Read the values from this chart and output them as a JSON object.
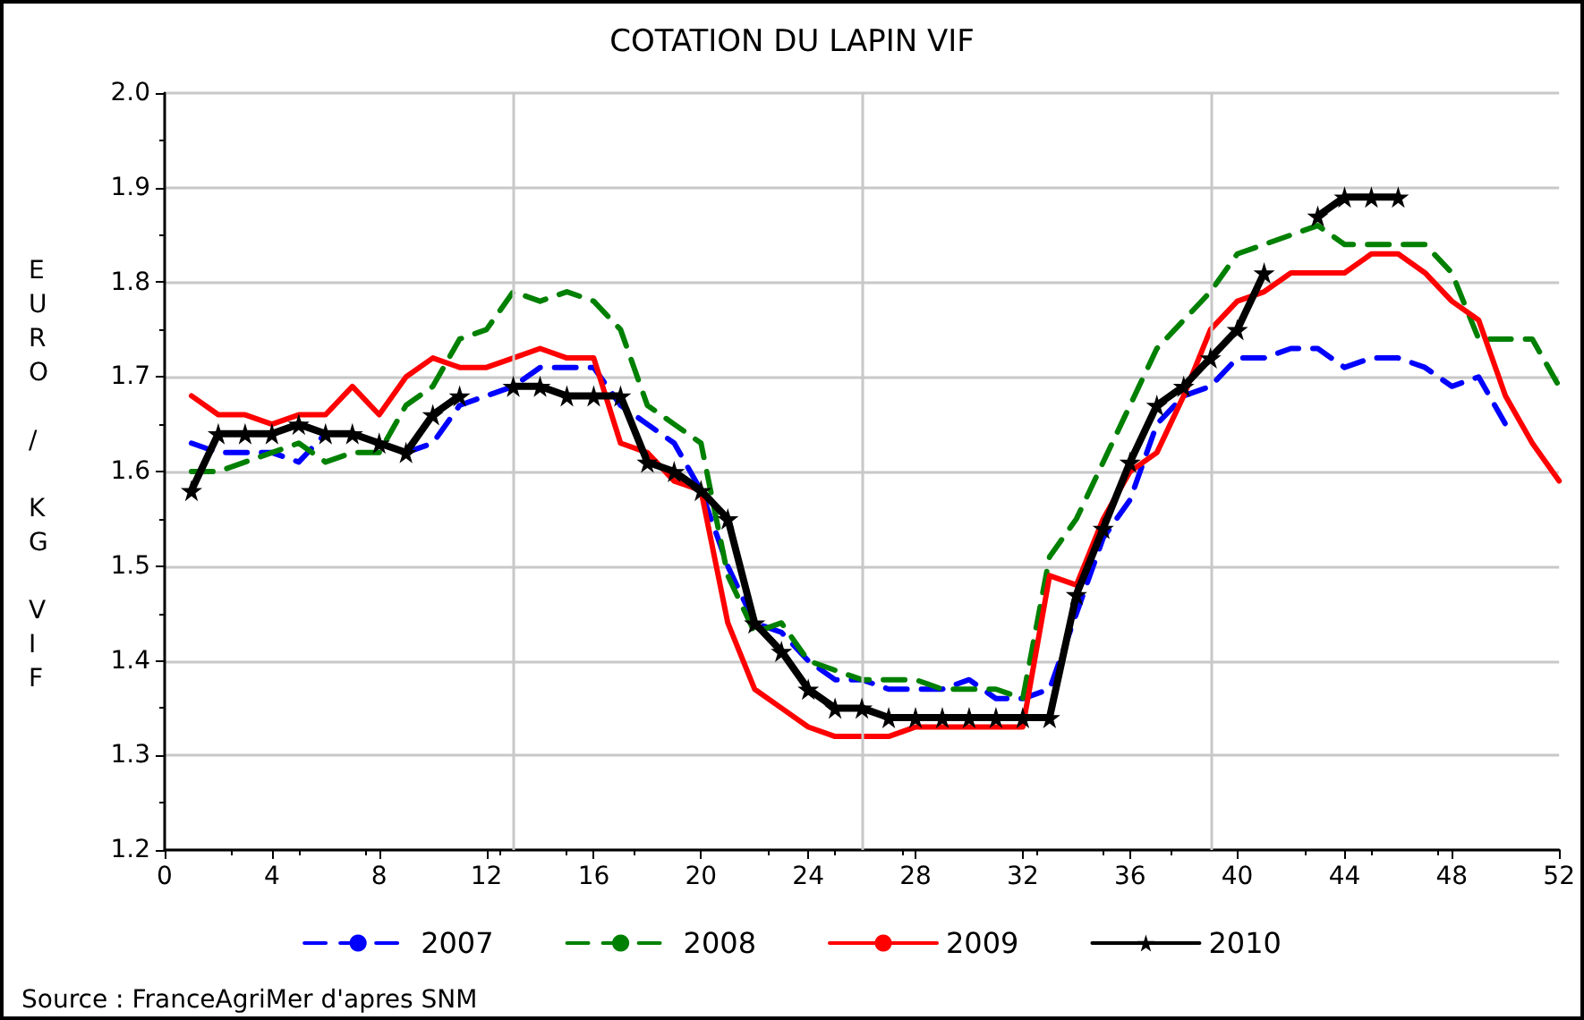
{
  "chart_data": {
    "type": "line",
    "title": "COTATION DU LAPIN VIF",
    "ylabel": "EURO / KG VIF",
    "annotations": [
      "Source : FranceAgriMer d'apres SNM"
    ],
    "x": [
      1,
      2,
      3,
      4,
      5,
      6,
      7,
      8,
      9,
      10,
      11,
      12,
      13,
      14,
      15,
      16,
      17,
      18,
      19,
      20,
      21,
      22,
      23,
      24,
      25,
      26,
      27,
      28,
      29,
      30,
      31,
      32,
      33,
      34,
      35,
      36,
      37,
      38,
      39,
      40,
      41,
      42,
      43,
      44,
      45,
      46,
      47,
      48,
      49,
      50,
      51,
      52
    ],
    "xlim": [
      0,
      52
    ],
    "xticks": [
      0,
      4,
      8,
      12,
      16,
      20,
      24,
      28,
      32,
      36,
      40,
      44,
      48,
      52
    ],
    "ylim": [
      1.2,
      2.0
    ],
    "yticks": [
      {
        "value": 1.2,
        "label": "1.2"
      },
      {
        "value": 1.3,
        "label": "1.3"
      },
      {
        "value": 1.4,
        "label": "1.4"
      },
      {
        "value": 1.5,
        "label": "1.5"
      },
      {
        "value": 1.6,
        "label": "1.6"
      },
      {
        "value": 1.7,
        "label": "1.7"
      },
      {
        "value": 1.8,
        "label": "1.8"
      },
      {
        "value": 1.9,
        "label": "1.9"
      },
      {
        "value": 2.0,
        "label": "2.0"
      }
    ],
    "grid": "y",
    "legend": "bottom",
    "marker": "none",
    "ref_lines": [
      {
        "axis": "x",
        "value": 13,
        "color": "#c8c8c8"
      },
      {
        "axis": "x",
        "value": 26,
        "color": "#c8c8c8"
      },
      {
        "axis": "x",
        "value": 39,
        "color": "#c8c8c8"
      }
    ],
    "series": [
      {
        "name": "2007",
        "color": "#0000ff",
        "line_style": "dashed",
        "values": [
          1.63,
          1.62,
          1.62,
          1.62,
          1.61,
          1.64,
          null,
          null,
          1.62,
          1.63,
          1.67,
          1.68,
          1.69,
          1.71,
          1.71,
          1.71,
          1.67,
          1.65,
          1.63,
          1.58,
          1.5,
          1.44,
          1.43,
          1.4,
          1.38,
          1.38,
          1.37,
          1.37,
          1.37,
          1.38,
          1.36,
          1.36,
          1.37,
          1.45,
          1.53,
          1.57,
          1.65,
          1.68,
          1.69,
          1.72,
          1.72,
          1.73,
          1.73,
          1.71,
          1.72,
          1.72,
          1.71,
          1.69,
          1.7,
          1.65,
          null,
          null
        ]
      },
      {
        "name": "2008",
        "color": "#008000",
        "line_style": "dashed",
        "values": [
          1.6,
          1.6,
          1.61,
          1.62,
          1.63,
          1.61,
          1.62,
          1.62,
          1.67,
          1.69,
          1.74,
          1.75,
          1.79,
          1.78,
          1.79,
          1.78,
          1.75,
          1.67,
          1.65,
          1.63,
          1.49,
          1.43,
          1.44,
          1.4,
          1.39,
          1.38,
          1.38,
          1.38,
          1.37,
          1.37,
          1.37,
          1.36,
          1.51,
          1.55,
          1.61,
          1.67,
          1.73,
          1.76,
          1.79,
          1.83,
          1.84,
          1.85,
          1.86,
          1.84,
          1.84,
          1.84,
          1.84,
          1.81,
          1.74,
          1.74,
          1.74,
          1.69
        ]
      },
      {
        "name": "2009",
        "color": "#ff0000",
        "line_style": "solid",
        "values": [
          1.68,
          1.66,
          1.66,
          1.65,
          1.66,
          1.66,
          1.69,
          1.66,
          1.7,
          1.72,
          1.71,
          1.71,
          1.72,
          1.73,
          1.72,
          1.72,
          1.63,
          1.62,
          1.59,
          1.58,
          1.44,
          1.37,
          1.35,
          1.33,
          1.32,
          1.32,
          1.32,
          1.33,
          1.33,
          1.33,
          1.33,
          1.33,
          1.49,
          1.48,
          1.55,
          1.6,
          1.62,
          1.68,
          1.75,
          1.78,
          1.79,
          1.81,
          1.81,
          1.81,
          1.83,
          1.83,
          1.81,
          1.78,
          1.76,
          1.68,
          1.63,
          1.59
        ]
      },
      {
        "name": "2010",
        "color": "#000000",
        "line_style": "solid",
        "marker": "star",
        "values": [
          1.58,
          1.64,
          1.64,
          1.64,
          1.65,
          1.64,
          1.64,
          1.63,
          1.62,
          1.66,
          1.68,
          null,
          1.69,
          1.69,
          1.68,
          1.68,
          1.68,
          1.61,
          1.6,
          1.58,
          1.55,
          1.44,
          1.41,
          1.37,
          1.35,
          1.35,
          1.34,
          1.34,
          1.34,
          1.34,
          1.34,
          1.34,
          1.34,
          1.47,
          1.54,
          1.61,
          1.67,
          1.69,
          1.72,
          1.75,
          1.81,
          null,
          1.87,
          1.89,
          1.89,
          1.89,
          null,
          null,
          null,
          null,
          null,
          null
        ]
      }
    ]
  }
}
